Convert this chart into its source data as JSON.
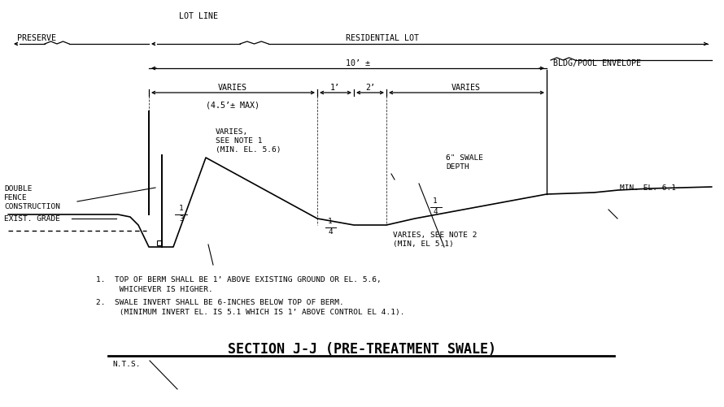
{
  "bg_color": "#ffffff",
  "line_color": "#000000",
  "title": "SECTION J-J (PRE-TREATMENT SWALE)",
  "subtitle": "N.T.S.",
  "note1_line1": "1.  TOP OF BERM SHALL BE 1’ ABOVE EXISTING GROUND OR EL. 5.6,",
  "note1_line2": "     WHICHEVER IS HIGHER.",
  "note2_line1": "2.  SWALE INVERT SHALL BE 6-INCHES BELOW TOP OF BERM.",
  "note2_line2": "     (MINIMUM INVERT EL. IS 5.1 WHICH IS 1’ ABOVE CONTROL EL 4.1).",
  "label_lot_line": "LOT LINE",
  "label_preserve": "PRESERVE",
  "label_residential_lot": "RESIDENTIAL LOT",
  "label_bldg_pool": "BLDG/POOL ENVELOPE",
  "label_varies_top": "VARIES",
  "label_varies_max": "(4.5’± MAX)",
  "label_1ft": "1’",
  "label_2ft": "2’",
  "label_varies_right": "VARIES",
  "label_varies_note1a": "VARIES,",
  "label_varies_note1b": "SEE NOTE 1",
  "label_varies_note1c": "(MIN. EL. 5.6)",
  "label_swale_depth": "6\" SWALE\nDEPTH",
  "label_double_fence_a": "DOUBLE",
  "label_double_fence_b": "FENCE",
  "label_double_fence_c": "CONSTRUCTION",
  "label_exist_grade": "EXIST. GRADE",
  "label_min_el_61": "MIN. EL. 6.1",
  "label_varies_note2a": "VARIES, SEE NOTE 2",
  "label_varies_note2b": "(MIN, EL 5.1)",
  "label_10ft": "10’ ±",
  "label_slope1": "1",
  "label_slope3": "3",
  "label_slope4": "4"
}
